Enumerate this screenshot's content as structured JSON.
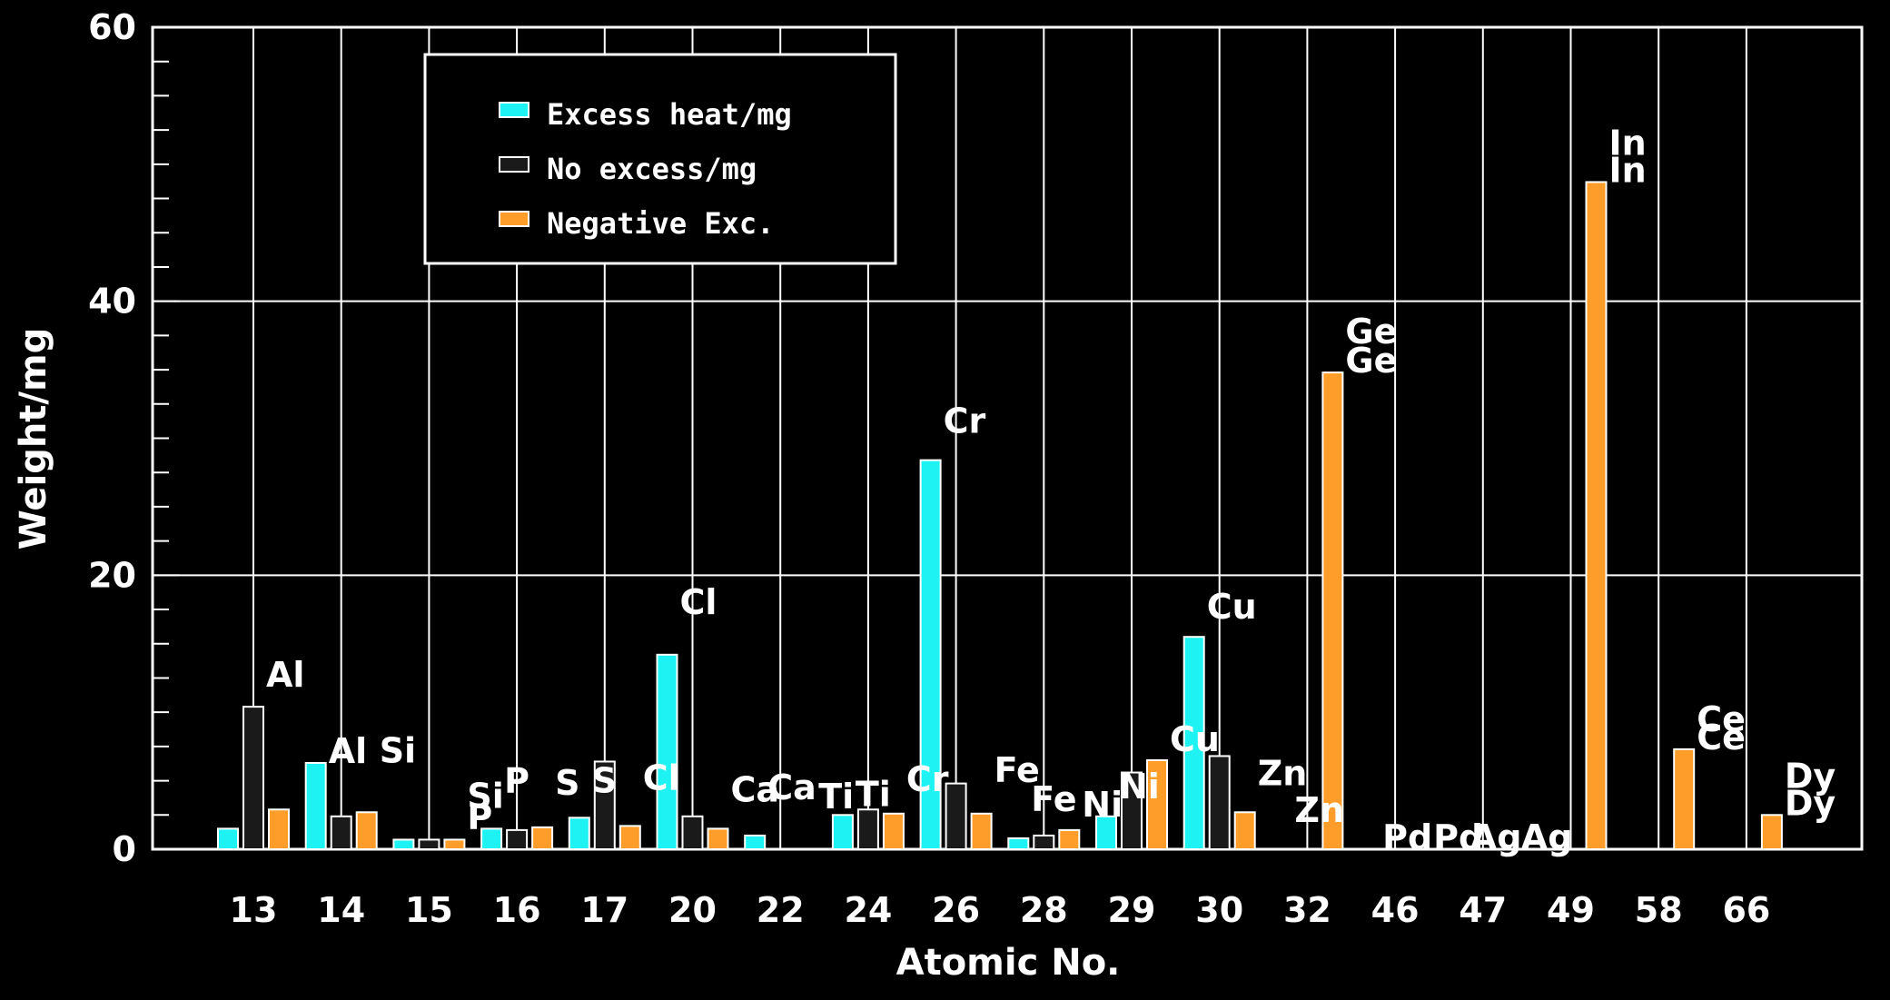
{
  "chart_data": {
    "type": "bar",
    "xlabel": "Atomic No.",
    "ylabel": "Weight/mg",
    "ylim": [
      0,
      60
    ],
    "yticks": [
      "0",
      "20",
      "40",
      "60"
    ],
    "grid": true,
    "legend_position": "top-left",
    "categories": [
      "13",
      "14",
      "15",
      "16",
      "17",
      "20",
      "22",
      "24",
      "26",
      "28",
      "29",
      "30",
      "32",
      "46",
      "47",
      "49",
      "58",
      "66"
    ],
    "elements": [
      "Al",
      "Si",
      "P",
      "S",
      "Cl",
      "Ca",
      "Ti",
      "Cr",
      "Fe",
      "Ni",
      "Cu",
      "Zn",
      "Ge",
      "Pd",
      "Ag",
      "In",
      "Ce",
      "Dy"
    ],
    "series": [
      {
        "name": "Excess heat/mg",
        "color": "#1ef2f2",
        "values": [
          1.5,
          6.3,
          0.7,
          1.5,
          2.3,
          14.2,
          1.0,
          2.5,
          28.4,
          0.8,
          2.4,
          15.5,
          0,
          0,
          0,
          0,
          0,
          0
        ]
      },
      {
        "name": "No excess/mg",
        "color": "#222222",
        "values": [
          10.4,
          2.4,
          0.7,
          1.4,
          6.4,
          2.4,
          0,
          2.9,
          4.8,
          1.0,
          5.6,
          6.8,
          0,
          0,
          0,
          0,
          0,
          0
        ]
      },
      {
        "name": "Negative Exc.",
        "color": "#ff9d2a",
        "values": [
          2.9,
          2.7,
          0.7,
          1.6,
          1.7,
          1.5,
          0,
          2.6,
          2.6,
          1.4,
          6.5,
          2.7,
          34.8,
          0,
          0,
          48.7,
          7.3,
          2.5
        ]
      }
    ],
    "value_labels": [
      {
        "text": "Al",
        "category": 0,
        "series": 1,
        "dy": -22
      },
      {
        "text": "Al",
        "category": 1,
        "series": 0,
        "dy": 0
      },
      {
        "text": "Si",
        "category": 1,
        "series": 2,
        "dy": -55
      },
      {
        "text": "Si",
        "category": 2,
        "series": 2,
        "dy": -35
      },
      {
        "text": "P",
        "category": 3,
        "series": 0,
        "dy": -40
      },
      {
        "text": "P",
        "category": 2,
        "series": 2,
        "dy": -12
      },
      {
        "text": "S",
        "category": 4,
        "series": 0,
        "dy": -28
      },
      {
        "text": "S",
        "category": 3,
        "series": 2,
        "dy": -36
      },
      {
        "text": "Cl",
        "category": 5,
        "series": 0,
        "dy": -45
      },
      {
        "text": "Cl",
        "category": 4,
        "series": 2,
        "dy": -40
      },
      {
        "text": "Ca",
        "category": 5,
        "series": 2,
        "dy": -30
      },
      {
        "text": "Ca",
        "category": 6,
        "series": 0,
        "dy": -40
      },
      {
        "text": "Ti",
        "category": 6,
        "series": 2,
        "dy": -45
      },
      {
        "text": "Ti",
        "category": 7,
        "series": 0,
        "dy": -10
      },
      {
        "text": "Cr",
        "category": 8,
        "series": 0,
        "dy": -30
      },
      {
        "text": "Cr",
        "category": 7,
        "series": 2,
        "dy": -25
      },
      {
        "text": "Fe",
        "category": 8,
        "series": 2,
        "dy": -35
      },
      {
        "text": "Fe",
        "category": 9,
        "series": 0,
        "dy": -30
      },
      {
        "text": "Ni",
        "category": 10,
        "series": 0,
        "dy": -20
      },
      {
        "text": "Ni",
        "category": 9,
        "series": 2,
        "dy": -15
      },
      {
        "text": "Cu",
        "category": 11,
        "series": 0,
        "dy": -20
      },
      {
        "text": "Cu",
        "category": 10,
        "series": 2,
        "dy": -10
      },
      {
        "text": "Zn",
        "category": 11,
        "series": 2,
        "dy": -30
      },
      {
        "text": "Zn",
        "category": 12,
        "series": 0,
        "dy": -30
      },
      {
        "text": "Ge",
        "category": 12,
        "series": 2,
        "dy": -32
      },
      {
        "text": "Ge",
        "category": 12,
        "series": 2,
        "dy": 0
      },
      {
        "text": "Pd",
        "category": 13,
        "series": 0,
        "dy": 0
      },
      {
        "text": "Pd",
        "category": 13,
        "series": 2,
        "dy": 0
      },
      {
        "text": "Ag",
        "category": 14,
        "series": 0,
        "dy": 0
      },
      {
        "text": "Ag",
        "category": 14,
        "series": 2,
        "dy": 0
      },
      {
        "text": "In",
        "category": 15,
        "series": 2,
        "dy": -30
      },
      {
        "text": "In",
        "category": 15,
        "series": 2,
        "dy": 0
      },
      {
        "text": "Ce",
        "category": 16,
        "series": 2,
        "dy": -20
      },
      {
        "text": "Ce",
        "category": 16,
        "series": 2,
        "dy": 0
      },
      {
        "text": "Dy",
        "category": 17,
        "series": 2,
        "dy": -30
      },
      {
        "text": "Dy",
        "category": 17,
        "series": 2,
        "dy": 0
      }
    ]
  }
}
